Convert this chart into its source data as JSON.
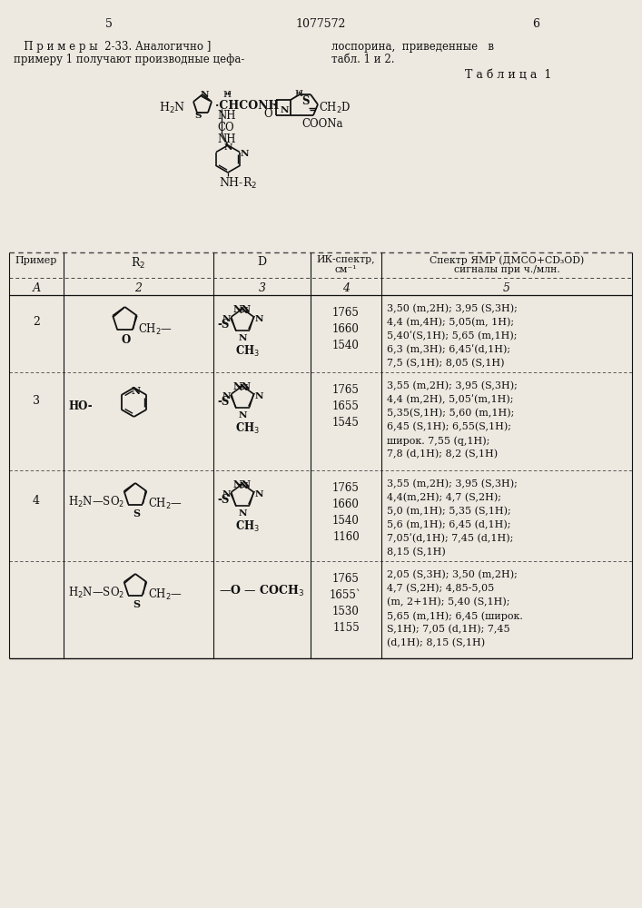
{
  "bg_color": "#ede9e0",
  "text_color": "#111111",
  "page_num_left": "5",
  "page_num_center": "1077572",
  "page_num_right": "6",
  "intro_left1": "   П р и м е р ы  2-33. Аналогично ]",
  "intro_left2": "примеру 1 получают производные цефа-",
  "intro_right1": "лоспорина,  приведенные   в",
  "intro_right2": "табл. 1 и 2.",
  "table_title": "Т а б л и ц а  1",
  "row2_ir": [
    "1765",
    "1660",
    "1540"
  ],
  "row2_nmr": [
    "3,50 (m,2H); 3,95 (S,3H);",
    "4,4 (m,4H); 5,05(m, 1H);",
    "5,40ʹ(S,1H); 5,65 (m,1H);",
    "6,3 (m,3H); 6,45ʹ(d,1H);",
    "7,5 (S,1H); 8,05 (S,1H)"
  ],
  "row3_ir": [
    "1765",
    "1655",
    "1545"
  ],
  "row3_nmr": [
    "3,55 (m,2H); 3,95 (S,3H);",
    "4,4 (m,2H), 5,05ʹ(m,1H);",
    "5,35(S,1H); 5,60 (m,1H);",
    "6,45 (S,1H); 6,55(S,1H);",
    "широк. 7,55 (q,1H);",
    "7,8 (d,1H); 8,2 (S,1H)"
  ],
  "row4_ir": [
    "1765",
    "1660",
    "1540",
    "1160"
  ],
  "row4_nmr": [
    "3,55 (m,2H); 3,95 (S,3H);",
    "4,4(m,2H); 4,7 (S,2H);",
    "5,0 (m,1H); 5,35 (S,1H);",
    "5,6 (m,1H); 6,45 (d,1H);",
    "7,05ʹ(d,1H); 7,45 (d,1H);",
    "8,15 (S,1H)"
  ],
  "row4b_ir": [
    "1765",
    "1655`",
    "1530",
    "1155"
  ],
  "row4b_nmr": [
    "2,05 (S,3H); 3,50 (m,2H);",
    "4,7 (S,2H); 4,85-5,05",
    "(m, 2+1H); 5,40 (S,1H);",
    "5,65 (m,1H); 6,45 (широк.",
    "S,1H); 7,05 (d,1H); 7,45",
    "(d,1H); 8,15 (S,1H)"
  ]
}
